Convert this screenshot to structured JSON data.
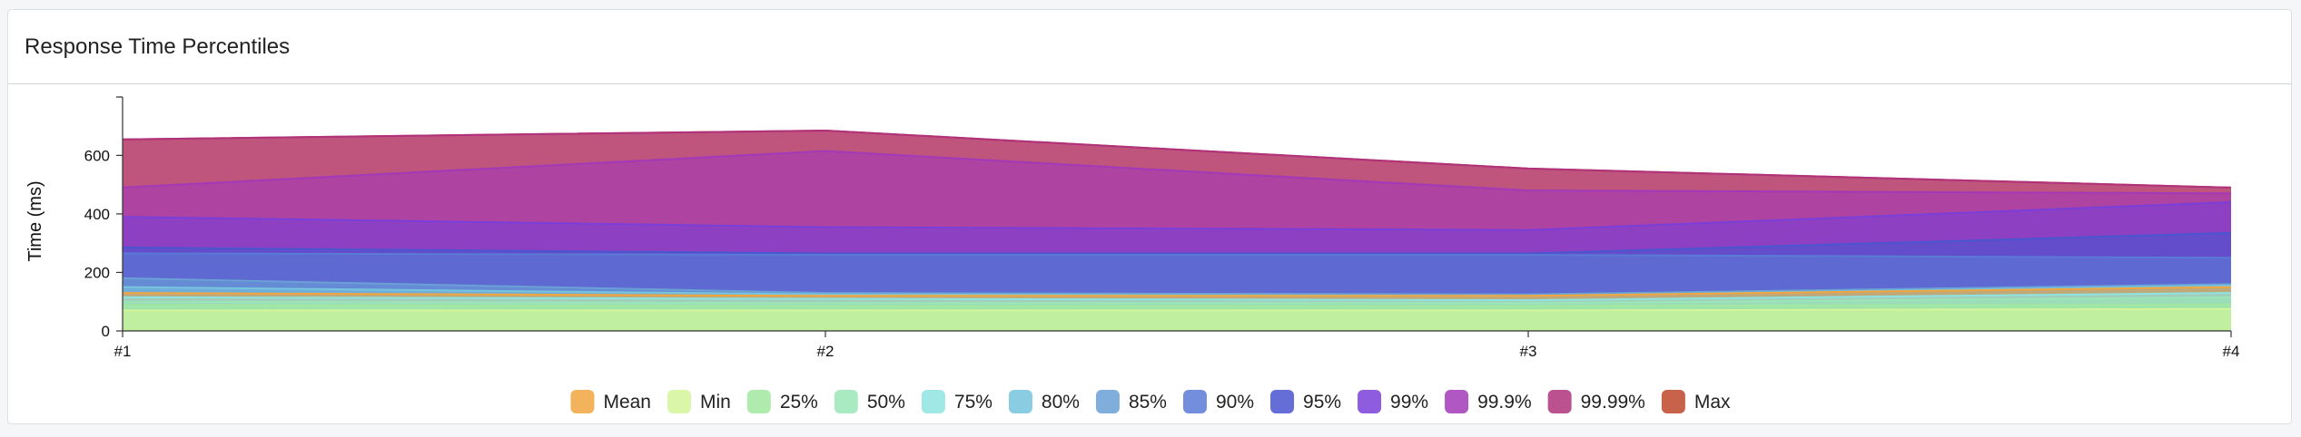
{
  "card": {
    "title": "Response Time Percentiles"
  },
  "chart_data": {
    "type": "area",
    "x": [
      "#1",
      "#2",
      "#3",
      "#4"
    ],
    "ylabel": "Time (ms)",
    "xlabel": "",
    "ylim": [
      0,
      750
    ],
    "yticks": [
      0,
      200,
      400,
      600
    ],
    "stacked": false,
    "grid": false,
    "legend_position": "bottom",
    "series": [
      {
        "name": "Max",
        "color": "#c0462a",
        "values": [
          655,
          685,
          555,
          490
        ]
      },
      {
        "name": "99.99%",
        "color": "#b0327c",
        "values": [
          655,
          685,
          555,
          490
        ]
      },
      {
        "name": "99.9%",
        "color": "#a339b8",
        "values": [
          490,
          615,
          480,
          470
        ]
      },
      {
        "name": "99%",
        "color": "#7a3fd9",
        "values": [
          390,
          355,
          345,
          440
        ]
      },
      {
        "name": "95%",
        "color": "#4a55cf",
        "values": [
          285,
          265,
          265,
          335
        ]
      },
      {
        "name": "90%",
        "color": "#5a7ad6",
        "values": [
          265,
          260,
          260,
          250
        ]
      },
      {
        "name": "85%",
        "color": "#6aa0d6",
        "values": [
          180,
          130,
          125,
          160
        ]
      },
      {
        "name": "80%",
        "color": "#76c4de",
        "values": [
          150,
          125,
          120,
          155
        ]
      },
      {
        "name": "Mean",
        "color": "#f0a640",
        "values": [
          130,
          120,
          120,
          150
        ]
      },
      {
        "name": "75%",
        "color": "#8ee4e0",
        "values": [
          115,
          110,
          105,
          130
        ]
      },
      {
        "name": "50%",
        "color": "#9ae6b8",
        "values": [
          100,
          95,
          95,
          115
        ]
      },
      {
        "name": "25%",
        "color": "#a2e8a0",
        "values": [
          88,
          85,
          85,
          90
        ]
      },
      {
        "name": "Min",
        "color": "#d4f59a",
        "values": [
          70,
          70,
          70,
          75
        ]
      }
    ],
    "legend_order": [
      "Mean",
      "Min",
      "25%",
      "50%",
      "75%",
      "80%",
      "85%",
      "90%",
      "95%",
      "99%",
      "99.9%",
      "99.99%",
      "Max"
    ]
  }
}
